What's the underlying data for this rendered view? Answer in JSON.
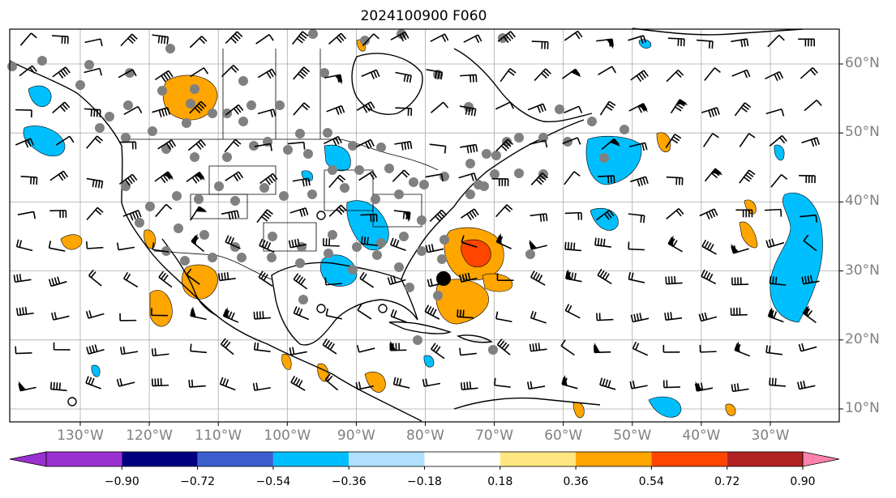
{
  "title": "2024100900 F060",
  "longitudes": [
    {
      "label": "130°W",
      "lon": -130
    },
    {
      "label": "120°W",
      "lon": -120
    },
    {
      "label": "110°W",
      "lon": -110
    },
    {
      "label": "100°W",
      "lon": -100
    },
    {
      "label": "90°W",
      "lon": -90
    },
    {
      "label": "80°W",
      "lon": -80
    },
    {
      "label": "70°W",
      "lon": -70
    },
    {
      "label": "60°W",
      "lon": -60
    },
    {
      "label": "50°W",
      "lon": -50
    },
    {
      "label": "40°W",
      "lon": -40
    },
    {
      "label": "30°W",
      "lon": -30
    }
  ],
  "latitudes": [
    {
      "label": "60°N",
      "lat": 60
    },
    {
      "label": "50°N",
      "lat": 50
    },
    {
      "label": "40°N",
      "lat": 40
    },
    {
      "label": "30°N",
      "lat": 30
    },
    {
      "label": "20°N",
      "lat": 20
    },
    {
      "label": "10°N",
      "lat": 10
    }
  ],
  "colorbar": {
    "levels": [
      "−0.90",
      "−0.72",
      "−0.54",
      "−0.36",
      "−0.18",
      "0.18",
      "0.36",
      "0.54",
      "0.72",
      "0.90"
    ],
    "colors": [
      "#9b30d0",
      "#000080",
      "#3a5fcd",
      "#00bfff",
      "#b0e0ff",
      "#ffffff",
      "#ffe680",
      "#ffa500",
      "#ff4500",
      "#b22222"
    ],
    "under_color": "#9b30d0",
    "over_color": "#ff82ab"
  },
  "colors": {
    "grid": "#aaaaaa",
    "land": "#000000",
    "station": "#808080"
  }
}
